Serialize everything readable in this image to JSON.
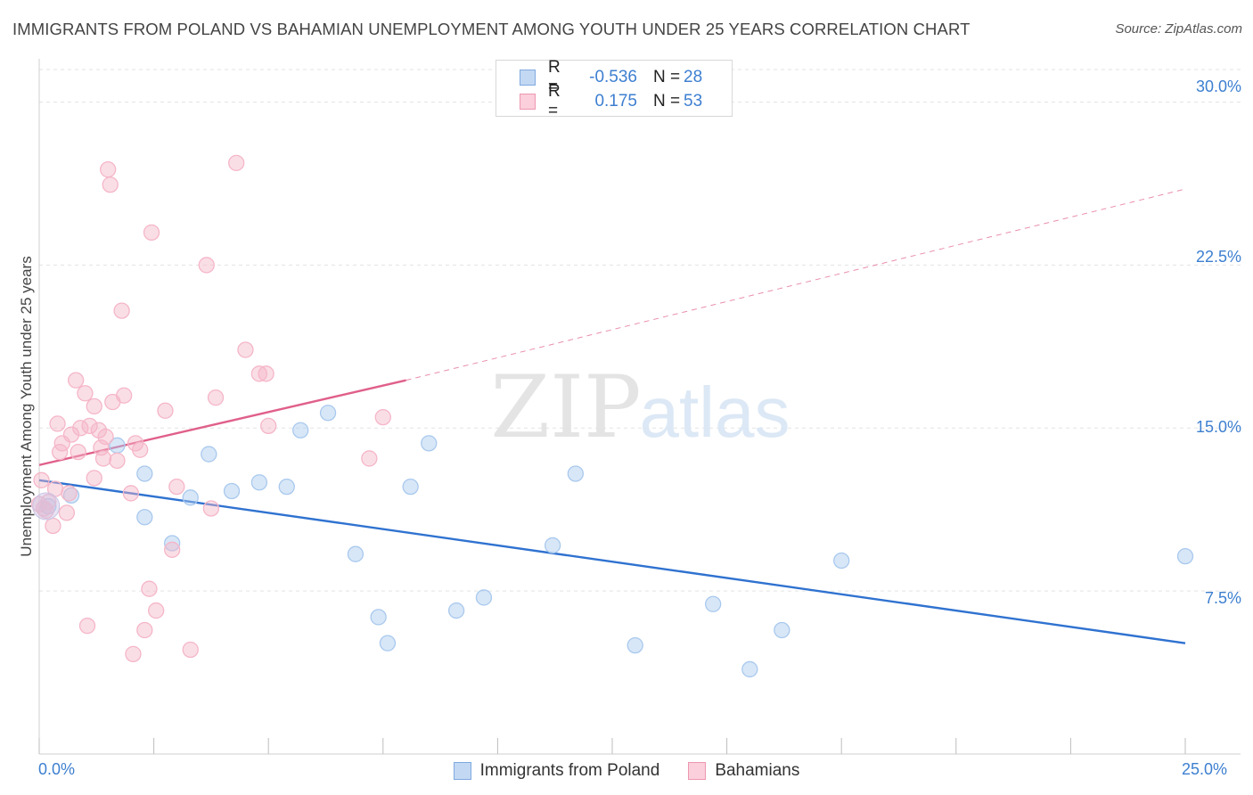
{
  "header": {
    "title": "IMMIGRANTS FROM POLAND VS BAHAMIAN UNEMPLOYMENT AMONG YOUTH UNDER 25 YEARS CORRELATION CHART",
    "source": "Source: ZipAtlas.com"
  },
  "watermark": {
    "zip": "ZIP",
    "atlas": "atlas"
  },
  "legend": {
    "rows": [
      {
        "r_label": "R =",
        "r_value": "-0.536",
        "n_label": "N =",
        "n_value": "28",
        "color": "#a9c9ee"
      },
      {
        "r_label": "R =",
        "r_value": "0.175",
        "n_label": "N =",
        "n_value": "53",
        "color": "#f5b6c8"
      }
    ]
  },
  "bottom_legend": {
    "poland": "Immigrants from Poland",
    "bahamians": "Bahamians"
  },
  "axes": {
    "x_min_label": "0.0%",
    "x_max_label": "25.0%",
    "y_ticks": [
      "30.0%",
      "22.5%",
      "15.0%",
      "7.5%"
    ],
    "ylabel": "Unemployment Among Youth under 25 years"
  },
  "chart_data": {
    "type": "scatter",
    "xlabel": "",
    "ylabel": "Unemployment Among Youth under 25 years",
    "xlim": [
      0,
      25
    ],
    "ylim": [
      0,
      31.5
    ],
    "y_ticks": [
      7.5,
      15.0,
      22.5,
      30.0
    ],
    "grid": "horizontal dashed",
    "legend_position": "top-center",
    "series": [
      {
        "name": "Immigrants from Poland",
        "color": "#a9c9ee",
        "line_color": "#2f72d0",
        "r": -0.536,
        "n": 28,
        "trend": {
          "x": [
            0,
            25
          ],
          "y": [
            12.6,
            5.1
          ]
        },
        "points": [
          [
            0.2,
            11.4
          ],
          [
            0.7,
            11.9
          ],
          [
            1.7,
            14.2
          ],
          [
            2.3,
            12.9
          ],
          [
            2.3,
            10.9
          ],
          [
            2.9,
            9.7
          ],
          [
            3.3,
            11.8
          ],
          [
            3.7,
            13.8
          ],
          [
            4.2,
            12.1
          ],
          [
            4.8,
            12.5
          ],
          [
            5.4,
            12.3
          ],
          [
            5.7,
            14.9
          ],
          [
            6.3,
            15.7
          ],
          [
            6.9,
            9.2
          ],
          [
            7.4,
            6.3
          ],
          [
            7.6,
            5.1
          ],
          [
            8.1,
            12.3
          ],
          [
            8.5,
            14.3
          ],
          [
            9.1,
            6.6
          ],
          [
            9.7,
            7.2
          ],
          [
            11.2,
            9.6
          ],
          [
            11.7,
            12.9
          ],
          [
            13.0,
            5.0
          ],
          [
            14.7,
            6.9
          ],
          [
            15.5,
            3.9
          ],
          [
            16.2,
            5.7
          ],
          [
            17.5,
            8.9
          ],
          [
            25.0,
            9.1
          ]
        ]
      },
      {
        "name": "Bahamians",
        "color": "#f5b6c8",
        "line_color": "#e0608a",
        "r": 0.175,
        "n": 53,
        "trend": {
          "x": [
            0,
            8
          ],
          "y": [
            13.3,
            17.2
          ]
        },
        "trend_dashed": {
          "x": [
            8,
            25
          ],
          "y": [
            17.2,
            26.0
          ]
        },
        "points": [
          [
            0.05,
            12.6
          ],
          [
            0.1,
            11.3
          ],
          [
            0.2,
            11.6
          ],
          [
            0.3,
            10.5
          ],
          [
            0.35,
            12.2
          ],
          [
            0.4,
            15.2
          ],
          [
            0.45,
            13.9
          ],
          [
            0.5,
            14.3
          ],
          [
            0.6,
            11.1
          ],
          [
            0.65,
            12.0
          ],
          [
            0.7,
            14.7
          ],
          [
            0.8,
            17.2
          ],
          [
            0.85,
            13.9
          ],
          [
            0.9,
            15.0
          ],
          [
            1.0,
            16.6
          ],
          [
            1.05,
            5.9
          ],
          [
            1.1,
            15.1
          ],
          [
            1.2,
            12.7
          ],
          [
            1.2,
            16.0
          ],
          [
            1.3,
            14.9
          ],
          [
            1.35,
            14.1
          ],
          [
            1.4,
            13.6
          ],
          [
            1.45,
            14.6
          ],
          [
            1.5,
            26.9
          ],
          [
            1.55,
            26.2
          ],
          [
            1.6,
            16.2
          ],
          [
            1.7,
            13.5
          ],
          [
            1.8,
            20.4
          ],
          [
            1.85,
            16.5
          ],
          [
            2.0,
            12.0
          ],
          [
            2.05,
            4.6
          ],
          [
            2.1,
            14.3
          ],
          [
            2.2,
            14.0
          ],
          [
            2.3,
            5.7
          ],
          [
            2.4,
            7.6
          ],
          [
            2.45,
            24.0
          ],
          [
            2.55,
            6.6
          ],
          [
            2.75,
            15.8
          ],
          [
            2.9,
            9.4
          ],
          [
            3.0,
            12.3
          ],
          [
            3.3,
            4.8
          ],
          [
            3.65,
            22.5
          ],
          [
            3.75,
            11.3
          ],
          [
            3.85,
            16.4
          ],
          [
            4.3,
            27.2
          ],
          [
            4.5,
            18.6
          ],
          [
            4.8,
            17.5
          ],
          [
            4.95,
            17.5
          ],
          [
            5.0,
            15.1
          ],
          [
            7.2,
            13.6
          ],
          [
            7.5,
            15.5
          ],
          [
            0.0,
            11.5
          ],
          [
            0.15,
            11.2
          ]
        ]
      }
    ]
  }
}
